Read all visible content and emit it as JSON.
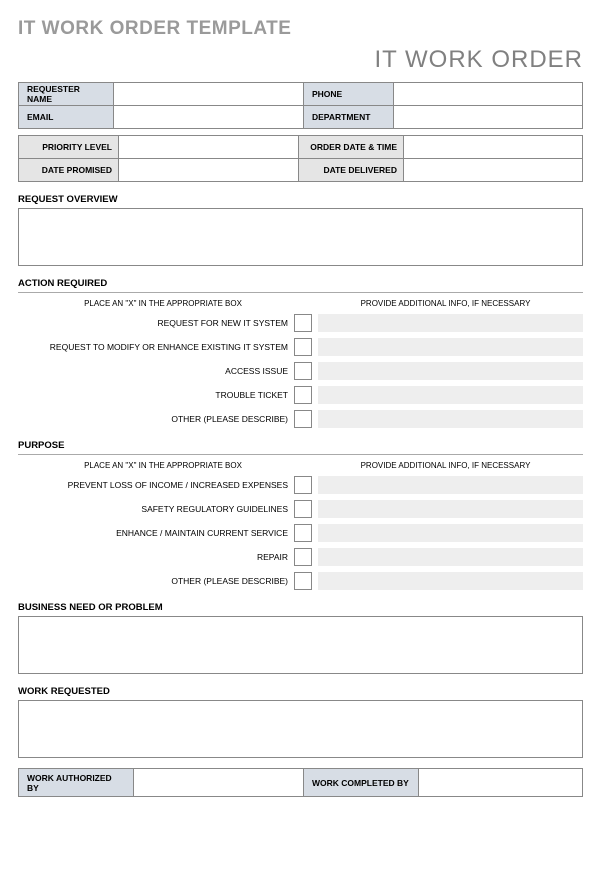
{
  "page_title": "IT WORK ORDER TEMPLATE",
  "doc_title": "IT WORK ORDER",
  "colors": {
    "title_gray": "#9a9a9a",
    "subtitle_gray": "#808080",
    "header_cell_bg": "#d7dde5",
    "label_cell_bg": "#e5e5e5",
    "info_fill": "#eeeeee",
    "border": "#888888"
  },
  "requester_block": {
    "requester_name": {
      "label": "REQUESTER NAME",
      "value": ""
    },
    "phone": {
      "label": "PHONE",
      "value": ""
    },
    "email": {
      "label": "EMAIL",
      "value": ""
    },
    "department": {
      "label": "DEPARTMENT",
      "value": ""
    }
  },
  "meta_block": {
    "priority_level": {
      "label": "PRIORITY LEVEL",
      "value": ""
    },
    "order_date_time": {
      "label": "ORDER DATE & TIME",
      "value": ""
    },
    "date_promised": {
      "label": "DATE PROMISED",
      "value": ""
    },
    "date_delivered": {
      "label": "DATE DELIVERED",
      "value": ""
    }
  },
  "sections": {
    "request_overview": {
      "header": "REQUEST OVERVIEW",
      "text": ""
    },
    "action_required": {
      "header": "ACTION REQUIRED",
      "instruction_left": "PLACE AN \"X\" IN THE APPROPRIATE BOX",
      "instruction_right": "PROVIDE ADDITIONAL INFO, IF NECESSARY",
      "items": [
        {
          "label": "REQUEST FOR NEW IT SYSTEM",
          "checked": "",
          "info": ""
        },
        {
          "label": "REQUEST TO MODIFY OR ENHANCE EXISTING IT SYSTEM",
          "checked": "",
          "info": ""
        },
        {
          "label": "ACCESS ISSUE",
          "checked": "",
          "info": ""
        },
        {
          "label": "TROUBLE TICKET",
          "checked": "",
          "info": ""
        },
        {
          "label": "OTHER (PLEASE DESCRIBE)",
          "checked": "",
          "info": ""
        }
      ]
    },
    "purpose": {
      "header": "PURPOSE",
      "instruction_left": "PLACE AN \"X\" IN THE APPROPRIATE BOX",
      "instruction_right": "PROVIDE ADDITIONAL INFO, IF NECESSARY",
      "items": [
        {
          "label": "PREVENT LOSS OF INCOME / INCREASED EXPENSES",
          "checked": "",
          "info": ""
        },
        {
          "label": "SAFETY REGULATORY GUIDELINES",
          "checked": "",
          "info": ""
        },
        {
          "label": "ENHANCE / MAINTAIN CURRENT SERVICE",
          "checked": "",
          "info": ""
        },
        {
          "label": "REPAIR",
          "checked": "",
          "info": ""
        },
        {
          "label": "OTHER (PLEASE DESCRIBE)",
          "checked": "",
          "info": ""
        }
      ]
    },
    "business_need": {
      "header": "BUSINESS NEED OR PROBLEM",
      "text": ""
    },
    "work_requested": {
      "header": "WORK REQUESTED",
      "text": ""
    }
  },
  "footer": {
    "authorized_by": {
      "label": "WORK AUTHORIZED BY",
      "value": ""
    },
    "completed_by": {
      "label": "WORK COMPLETED BY",
      "value": ""
    }
  }
}
